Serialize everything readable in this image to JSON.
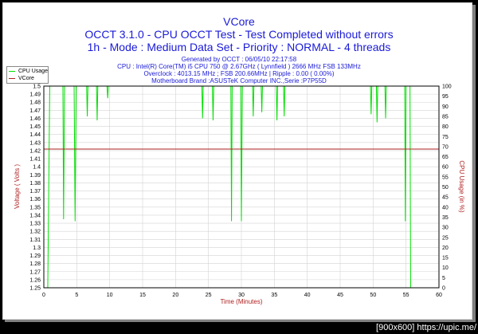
{
  "chart_data": {
    "type": "line",
    "title": "VCore",
    "subtitle_lines": [
      "OCCT 3.1.0 - CPU OCCT Test - Test Completed without errors",
      "1h - Mode : Medium Data Set - Priority : NORMAL - 4 threads"
    ],
    "info_lines": [
      "Generated by OCCT : 06/05/10 22:17:58",
      "CPU : Intel(R) Core(TM) i5 CPU 750 @ 2.67GHz ( Lynnfield ) 2666 MHz FSB 133MHz",
      "Overclock : 4013.15 MHz ; FSB 200.66MHz | Ripple : 0.00 ( 0.00%)",
      "Motherboard Brand :ASUSTeK Computer INC.,Serie :P7P55D"
    ],
    "xlabel": "Time (Minutes)",
    "ylabel_left": "Voltage ( Volts )",
    "ylabel_right": "CPU Usage (in %)",
    "xlim": [
      0,
      60
    ],
    "ylim_left": [
      1.25,
      1.5
    ],
    "ylim_right": [
      0,
      100
    ],
    "x_ticks": [
      0,
      5,
      10,
      15,
      20,
      25,
      30,
      35,
      40,
      45,
      50,
      55,
      60
    ],
    "y_ticks_left": [
      "1.25",
      "1.26",
      "1.27",
      "1.28",
      "1.29",
      "1.3",
      "1.31",
      "1.32",
      "1.33",
      "1.34",
      "1.35",
      "1.36",
      "1.37",
      "1.38",
      "1.39",
      "1.4",
      "1.41",
      "1.42",
      "1.43",
      "1.44",
      "1.45",
      "1.46",
      "1.47",
      "1.48",
      "1.49",
      "1.5"
    ],
    "y_ticks_right": [
      "0",
      "5",
      "10",
      "15",
      "20",
      "25",
      "30",
      "35",
      "40",
      "45",
      "50",
      "55",
      "60",
      "65",
      "70",
      "75",
      "80",
      "85",
      "90",
      "95",
      "100"
    ],
    "grid": true,
    "legend_position": "top-left",
    "series": [
      {
        "name": "CPU Usage",
        "axis": "right",
        "color": "#00e000",
        "points": [
          [
            0,
            0
          ],
          [
            0.6,
            0
          ],
          [
            0.9,
            100
          ],
          [
            2.9,
            100
          ],
          [
            3.0,
            34
          ],
          [
            3.15,
            100
          ],
          [
            4.6,
            100
          ],
          [
            4.75,
            33
          ],
          [
            4.9,
            100
          ],
          [
            6.5,
            100
          ],
          [
            6.6,
            85
          ],
          [
            6.7,
            100
          ],
          [
            8.0,
            100
          ],
          [
            8.1,
            83
          ],
          [
            8.2,
            100
          ],
          [
            9.6,
            100
          ],
          [
            9.7,
            94
          ],
          [
            9.8,
            100
          ],
          [
            24.0,
            100
          ],
          [
            24.1,
            84
          ],
          [
            24.2,
            100
          ],
          [
            25.6,
            100
          ],
          [
            25.7,
            83
          ],
          [
            25.8,
            100
          ],
          [
            28.4,
            100
          ],
          [
            28.5,
            33
          ],
          [
            28.6,
            100
          ],
          [
            29.9,
            100
          ],
          [
            30.0,
            33
          ],
          [
            30.15,
            100
          ],
          [
            31.7,
            100
          ],
          [
            31.8,
            85
          ],
          [
            31.9,
            100
          ],
          [
            33.0,
            100
          ],
          [
            33.1,
            87
          ],
          [
            33.2,
            100
          ],
          [
            35.3,
            100
          ],
          [
            35.4,
            83
          ],
          [
            35.5,
            100
          ],
          [
            36.4,
            100
          ],
          [
            36.5,
            85
          ],
          [
            36.6,
            100
          ],
          [
            49.6,
            100
          ],
          [
            49.7,
            86
          ],
          [
            49.8,
            100
          ],
          [
            50.5,
            100
          ],
          [
            50.6,
            82
          ],
          [
            50.7,
            100
          ],
          [
            51.8,
            100
          ],
          [
            51.9,
            84
          ],
          [
            52.0,
            100
          ],
          [
            54.8,
            100
          ],
          [
            54.9,
            33
          ],
          [
            55.0,
            100
          ],
          [
            55.6,
            100
          ],
          [
            55.7,
            0
          ],
          [
            60,
            0
          ]
        ]
      },
      {
        "name": "VCore",
        "axis": "left",
        "color": "#b02020",
        "points": [
          [
            0,
            1.422
          ],
          [
            60,
            1.422
          ]
        ]
      }
    ]
  },
  "footer": "[900x600] https://upic.me/"
}
